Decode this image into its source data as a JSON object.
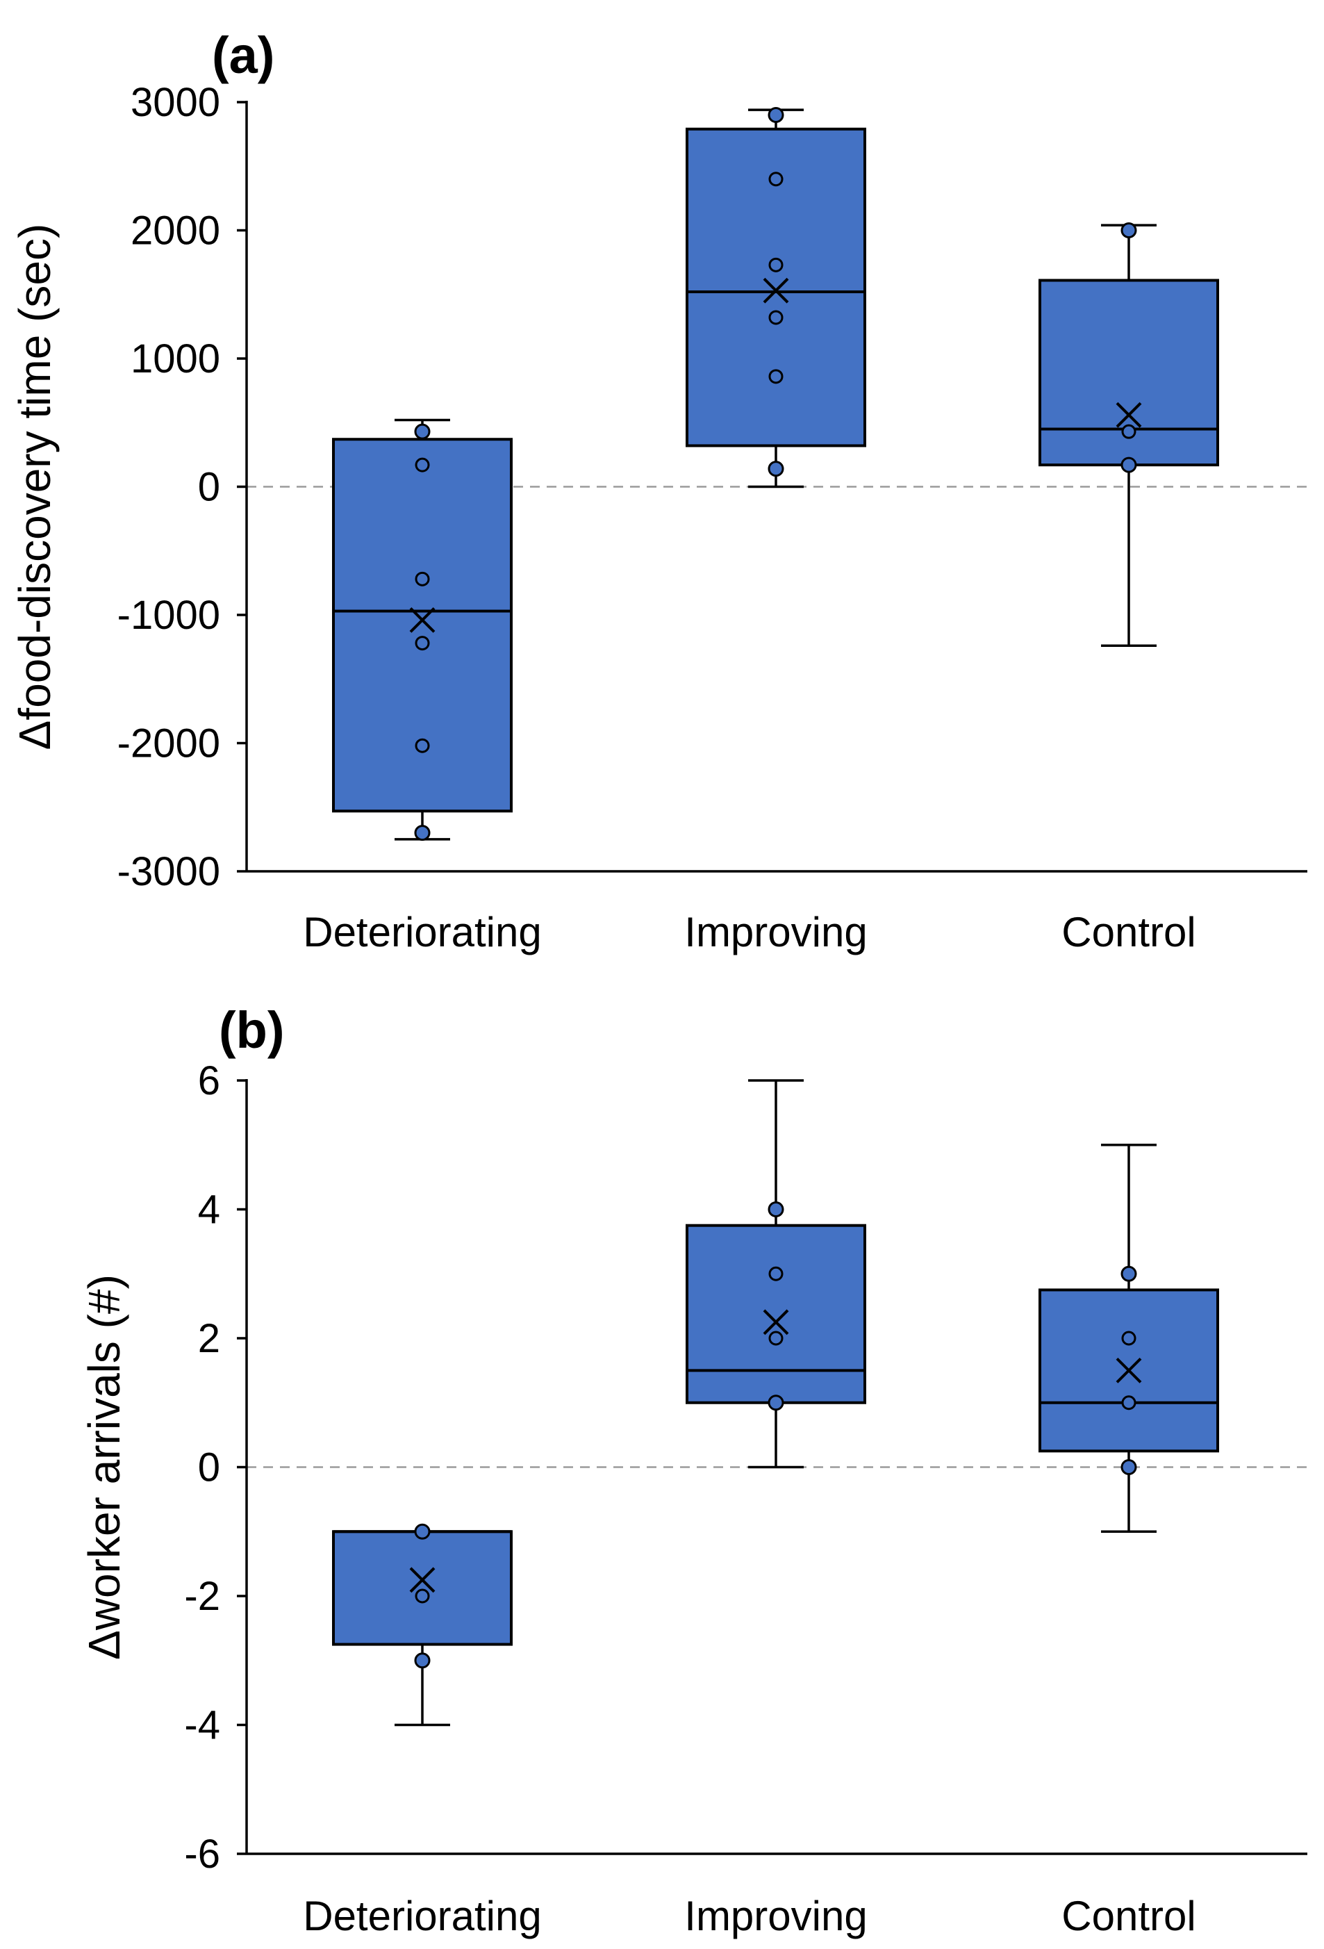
{
  "chart_data": [
    {
      "type": "box",
      "panel_label": "(a)",
      "ylabel": "Δfood-discovery time (sec)",
      "xlabel": "",
      "ylim": [
        -3000,
        3000
      ],
      "yticks": [
        3000,
        2000,
        1000,
        0,
        -1000,
        -2000,
        -3000
      ],
      "reference_line": 0,
      "categories": [
        "Deteriorating",
        "Improving",
        "Control"
      ],
      "groups": [
        {
          "name": "Deteriorating",
          "whisker_low": -2750,
          "q1": -2530,
          "median": -970,
          "q3": 370,
          "whisker_high": 520,
          "mean": -1040,
          "points": [
            430,
            170,
            -720,
            -1220,
            -2020,
            -2700
          ]
        },
        {
          "name": "Improving",
          "whisker_low": 0,
          "q1": 320,
          "median": 1520,
          "q3": 2790,
          "whisker_high": 2940,
          "mean": 1530,
          "points": [
            2900,
            2400,
            1730,
            1320,
            860,
            140
          ]
        },
        {
          "name": "Control",
          "whisker_low": -1240,
          "q1": 170,
          "median": 450,
          "q3": 1610,
          "whisker_high": 2040,
          "mean": 560,
          "points": [
            2000,
            430,
            170
          ]
        }
      ]
    },
    {
      "type": "box",
      "panel_label": "(b)",
      "ylabel": "Δworker arrivals (#)",
      "xlabel": "",
      "ylim": [
        -6,
        6
      ],
      "yticks": [
        6,
        4,
        2,
        0,
        -2,
        -4,
        -6
      ],
      "reference_line": 0,
      "categories": [
        "Deteriorating",
        "Improving",
        "Control"
      ],
      "groups": [
        {
          "name": "Deteriorating",
          "whisker_low": -4,
          "q1": -2.75,
          "median": -1,
          "q3": -1,
          "whisker_high": -1,
          "mean": -1.75,
          "points": [
            -1,
            -2,
            -3
          ]
        },
        {
          "name": "Improving",
          "whisker_low": 0,
          "q1": 1,
          "median": 1.5,
          "q3": 3.75,
          "whisker_high": 6,
          "mean": 2.25,
          "points": [
            4,
            3,
            2,
            1
          ]
        },
        {
          "name": "Control",
          "whisker_low": -1,
          "q1": 0.25,
          "median": 1,
          "q3": 2.75,
          "whisker_high": 5,
          "mean": 1.5,
          "points": [
            3,
            2,
            1,
            0
          ]
        }
      ]
    }
  ],
  "colors": {
    "box_fill": "#4472c4",
    "outline": "#000000",
    "reference_line": "#9a9a9a"
  }
}
